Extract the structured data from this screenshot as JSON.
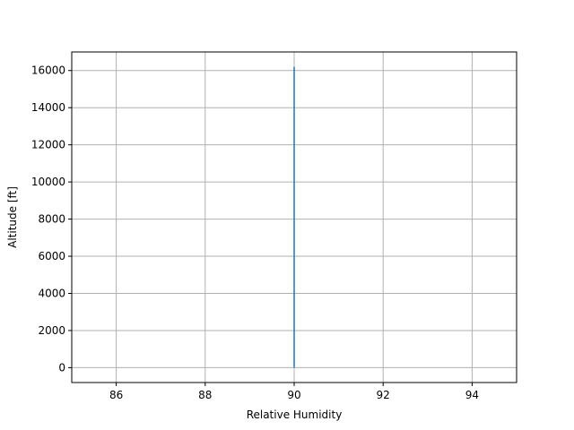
{
  "chart_data": {
    "type": "line",
    "title": "",
    "xlabel": "Relative Humidity",
    "ylabel": "Altitude [ft]",
    "xlim": [
      85,
      95
    ],
    "ylim": [
      -800,
      17000
    ],
    "x_ticks": [
      86,
      88,
      90,
      92,
      94
    ],
    "y_ticks": [
      0,
      2000,
      4000,
      6000,
      8000,
      10000,
      12000,
      14000,
      16000
    ],
    "grid": true,
    "legend": "none",
    "series": [
      {
        "color": "#1f77b4",
        "x": [
          90,
          90
        ],
        "y": [
          0,
          16200
        ]
      }
    ]
  }
}
